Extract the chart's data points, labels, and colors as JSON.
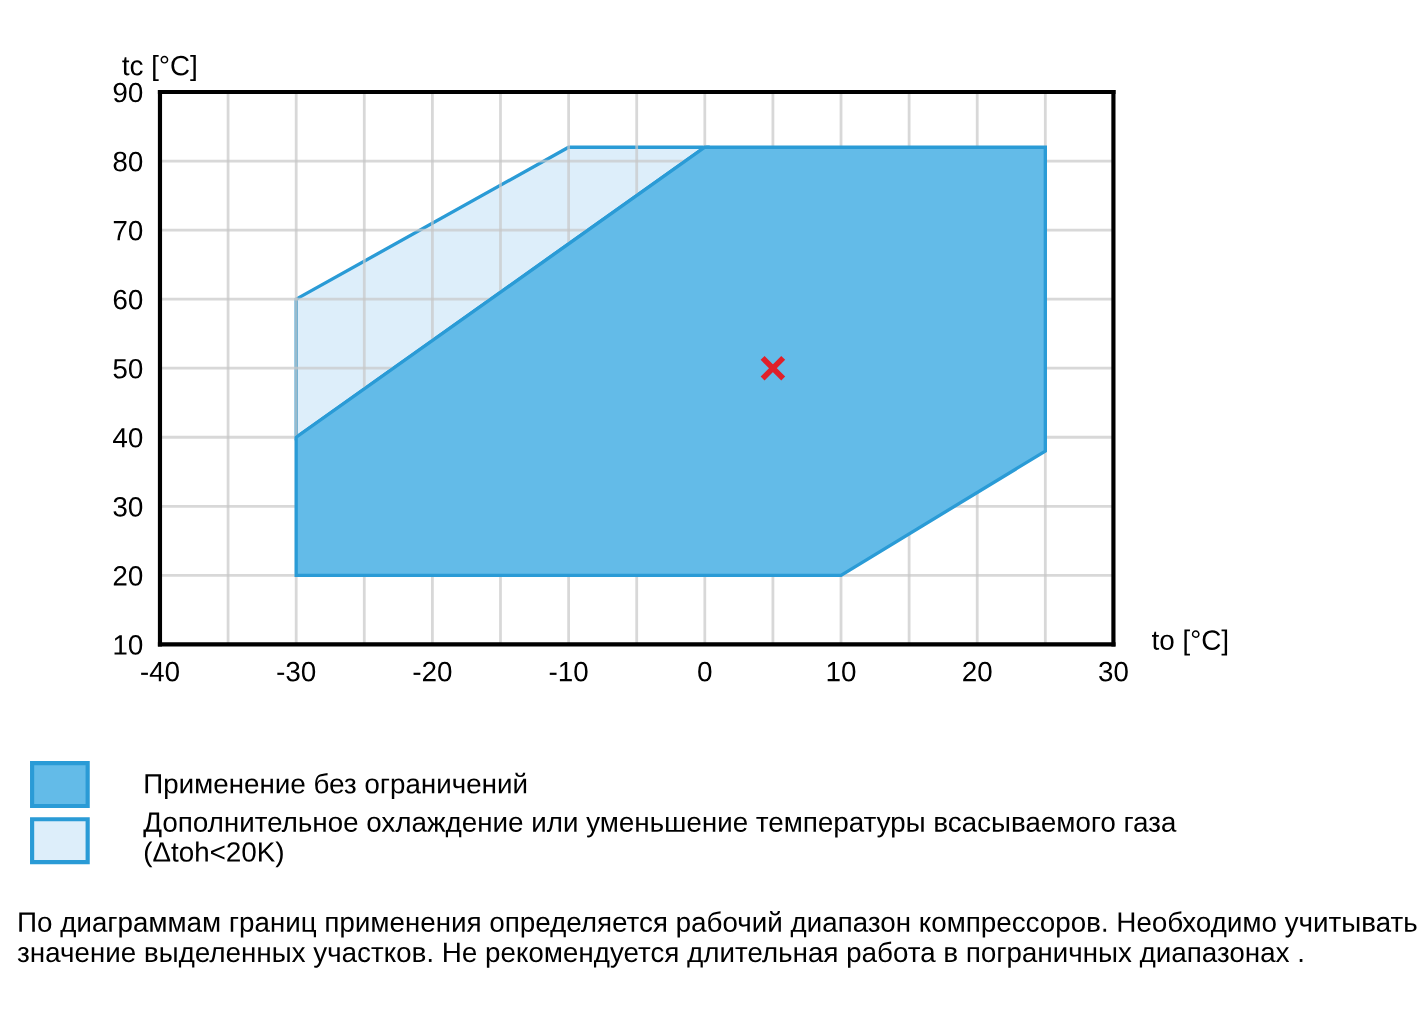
{
  "chart_data": {
    "type": "area",
    "xlabel": "to [°C]",
    "ylabel": "tc [°C]",
    "xlim": [
      -40,
      30
    ],
    "ylim": [
      10,
      90
    ],
    "xticks": [
      -40,
      {
        "value": -35,
        "label": null
      },
      -30,
      {
        "value": -25,
        "label": null
      },
      -20,
      {
        "value": -15,
        "label": null
      },
      -10,
      {
        "value": -5,
        "label": null
      },
      0,
      {
        "value": 5,
        "label": null
      },
      10,
      {
        "value": 15,
        "label": null
      },
      20,
      {
        "value": 25,
        "label": null
      },
      30
    ],
    "yticks": [
      10,
      20,
      30,
      40,
      50,
      60,
      70,
      80,
      90
    ],
    "grid": true,
    "legend": "bottom",
    "series": [
      {
        "name": "Дополнительное охлаждение или уменьшение температуры всасываемого газа\n(Δtoh<20K)",
        "color": "#ddeefa",
        "x": [
          -30,
          -30,
          -10,
          0
        ],
        "values": [
          40,
          60,
          82,
          82
        ]
      },
      {
        "name": "Применение без ограничений",
        "color": "#63bbe8",
        "x": [
          -30,
          -30,
          0,
          25,
          25,
          10
        ],
        "values": [
          20,
          40,
          82,
          82,
          38,
          20
        ]
      },
      {
        "type": "scatter",
        "marker": "cross",
        "color": "#e0202a",
        "x": [
          5
        ],
        "values": [
          50
        ]
      }
    ],
    "annotations": [
      "По диаграммам границ применения определяется рабочий диапазон компрессоров. Необходимо учитывать значение выделенных участков. Не рекомендуется длительная работа в пограничных диапазонах ."
    ]
  }
}
